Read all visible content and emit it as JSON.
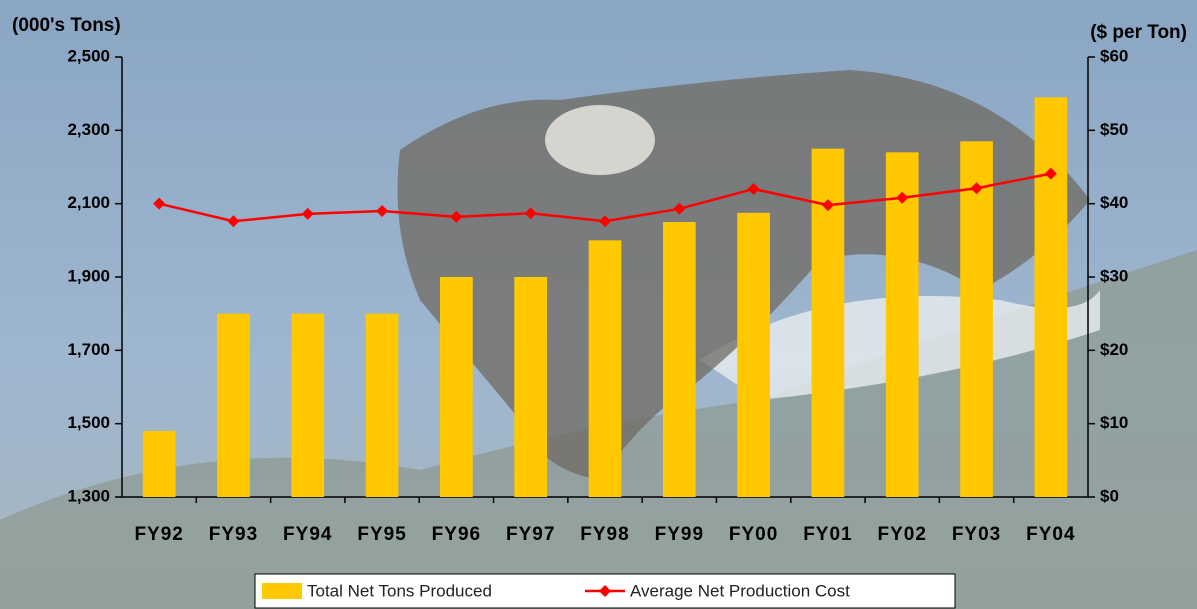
{
  "chart_data": {
    "type": "bar-line",
    "y_label": "(000's Tons)",
    "y2_label": "($ per Ton)",
    "categories": [
      "FY92",
      "FY93",
      "FY94",
      "FY95",
      "FY96",
      "FY97",
      "FY98",
      "FY99",
      "FY00",
      "FY01",
      "FY02",
      "FY03",
      "FY04"
    ],
    "series": [
      {
        "name": "Total Net Tons Produced",
        "color": "#ffc800",
        "type": "bar",
        "axis": "y",
        "values": [
          1480,
          1800,
          1800,
          1800,
          1900,
          1900,
          2000,
          2050,
          2075,
          2250,
          2240,
          2270,
          2390
        ]
      },
      {
        "name": "Average Net Production Cost",
        "color": "#ff0000",
        "type": "line",
        "axis": "y2",
        "values": [
          40.0,
          37.6,
          38.6,
          39.0,
          38.2,
          38.7,
          37.6,
          39.3,
          42.0,
          39.8,
          40.8,
          42.1,
          44.1
        ]
      }
    ],
    "ylim": [
      1300,
      2500
    ],
    "yticks": [
      {
        "value": 1300,
        "label": "1,300"
      },
      {
        "value": 1500,
        "label": "1,500"
      },
      {
        "value": 1700,
        "label": "1,700"
      },
      {
        "value": 1900,
        "label": "1,900"
      },
      {
        "value": 2100,
        "label": "2,100"
      },
      {
        "value": 2300,
        "label": "2,300"
      },
      {
        "value": 2500,
        "label": "2,500"
      }
    ],
    "y2lim": [
      0,
      60
    ],
    "y2ticks": [
      {
        "value": 0,
        "label": "$0"
      },
      {
        "value": 10,
        "label": "$10"
      },
      {
        "value": 20,
        "label": "$20"
      },
      {
        "value": 30,
        "label": "$30"
      },
      {
        "value": 40,
        "label": "$40"
      },
      {
        "value": 50,
        "label": "$50"
      },
      {
        "value": 60,
        "label": "$60"
      }
    ],
    "legend": "bottom"
  }
}
